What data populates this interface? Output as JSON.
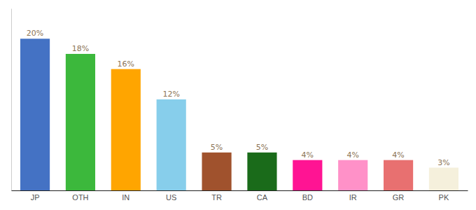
{
  "chart_data": {
    "type": "bar",
    "categories": [
      "JP",
      "OTH",
      "IN",
      "US",
      "TR",
      "CA",
      "BD",
      "IR",
      "GR",
      "PK"
    ],
    "values": [
      20,
      18,
      16,
      12,
      5,
      5,
      4,
      4,
      4,
      3
    ],
    "value_labels": [
      "20%",
      "18%",
      "16%",
      "12%",
      "5%",
      "5%",
      "4%",
      "4%",
      "4%",
      "3%"
    ],
    "colors": [
      "#4472C4",
      "#3CB83C",
      "#FFA500",
      "#87CEEB",
      "#A0522D",
      "#1A6B1A",
      "#FF1493",
      "#FF91C8",
      "#E87070",
      "#F5F0DC"
    ],
    "ylim": [
      0,
      24
    ],
    "data_labels": true,
    "tick_labels": "x",
    "grid": false
  }
}
